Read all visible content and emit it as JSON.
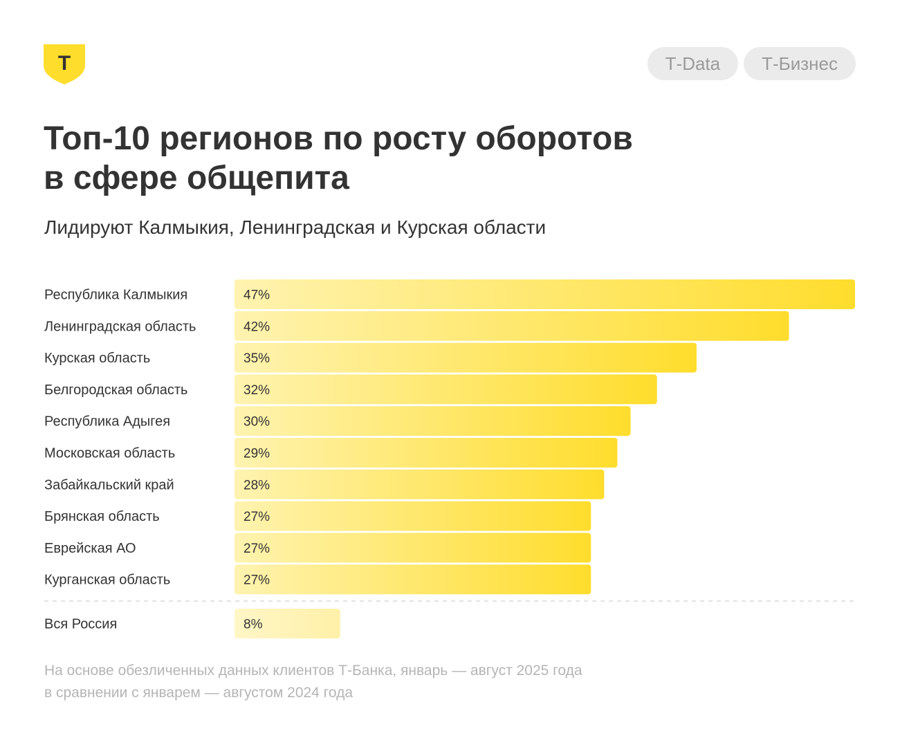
{
  "header": {
    "logo_icon": "t-bank-shield-icon",
    "logo_letter": "Т",
    "tags": [
      "Т-Data",
      "Т-Бизнес"
    ]
  },
  "title": {
    "line1": "Топ-10 регионов по росту оборотов",
    "line2": "в сфере общепита"
  },
  "subtitle": "Лидируют Калмыкия, Ленинградская и Курская области",
  "chart_data": {
    "type": "bar",
    "orientation": "horizontal",
    "categories": [
      "Республика Калмыкия",
      "Ленинградская область",
      "Курская область",
      "Белгородская область",
      "Республика Адыгея",
      "Московская область",
      "Забайкальский край",
      "Брянская область",
      "Еврейская АО",
      "Курганская область"
    ],
    "values": [
      47,
      42,
      35,
      32,
      30,
      29,
      28,
      27,
      27,
      27
    ],
    "labels": [
      "47%",
      "42%",
      "35%",
      "32%",
      "30%",
      "29%",
      "28%",
      "27%",
      "27%",
      "27%"
    ],
    "reference": {
      "category": "Вся Россия",
      "value": 8,
      "label": "8%"
    },
    "unit": "%",
    "xlim": [
      0,
      47
    ],
    "colors": {
      "bar_start": "#fff3b0",
      "bar_end": "#ffdd2d",
      "reference_start": "#fff6c7",
      "reference_end": "#fff0a8"
    }
  },
  "footnote": {
    "line1": "На основе обезличенных данных клиентов Т-Банка, январь — август 2025 года",
    "line2": "в сравнении с январем — августом 2024 года"
  }
}
